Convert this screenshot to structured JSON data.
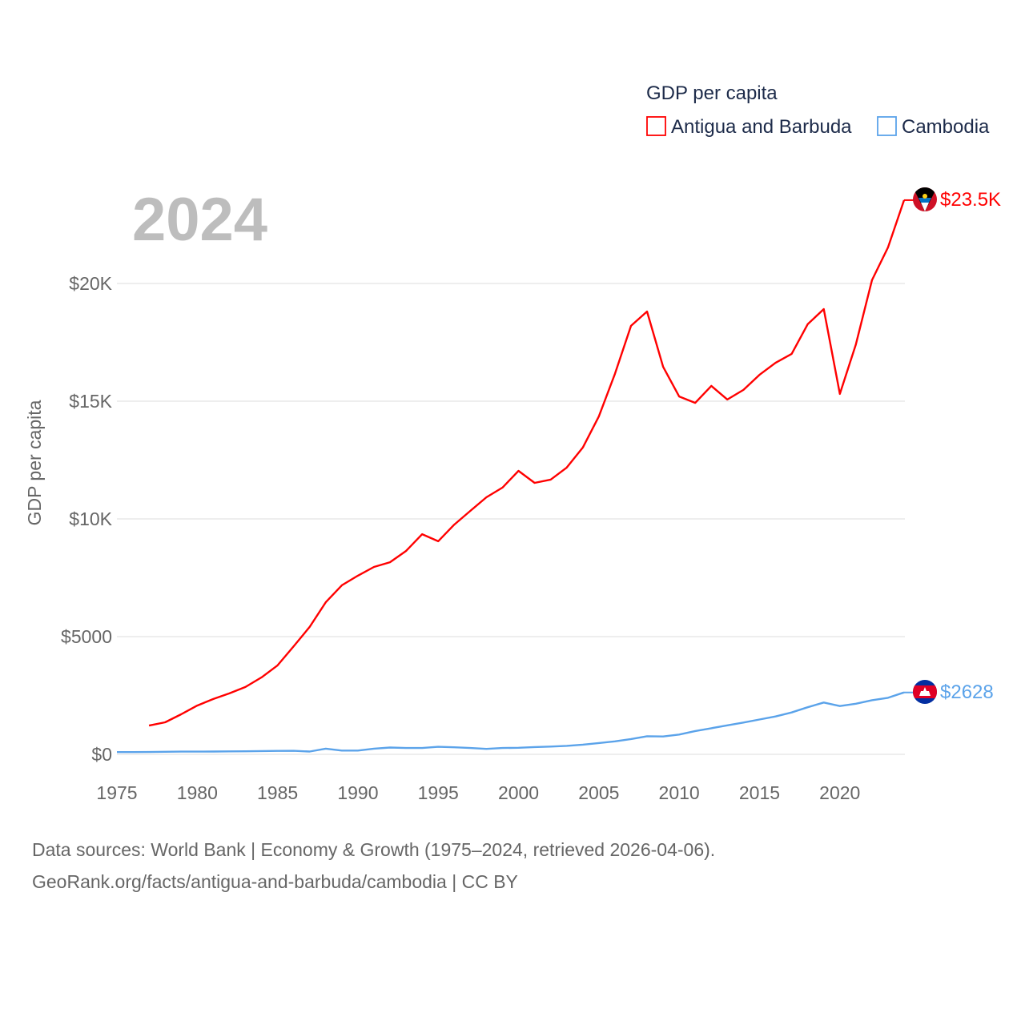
{
  "chart_data": {
    "type": "line",
    "title": "GDP per capita",
    "year_label": "2024",
    "ylabel": "GDP per capita",
    "xlabel": "",
    "xlim": [
      1975,
      2024
    ],
    "ylim": [
      0,
      24000
    ],
    "grid": true,
    "legend_placement": "top-right",
    "x_ticks": [
      1975,
      1980,
      1985,
      1990,
      1995,
      2000,
      2005,
      2010,
      2015,
      2020
    ],
    "x_tick_labels": [
      "1975",
      "1980",
      "1985",
      "1990",
      "1995",
      "2000",
      "2005",
      "2010",
      "2015",
      "2020"
    ],
    "y_ticks": [
      0,
      5000,
      10000,
      15000,
      20000
    ],
    "y_tick_labels": [
      "$0",
      "$5000",
      "$10K",
      "$15K",
      "$20K"
    ],
    "series": [
      {
        "name": "Antigua and Barbuda",
        "color": "#ff0000",
        "end_label": "$23.5K",
        "flag": "antigua-and-barbuda-flag",
        "x": [
          1977,
          1978,
          1979,
          1980,
          1981,
          1982,
          1983,
          1984,
          1985,
          1986,
          1987,
          1988,
          1989,
          1990,
          1991,
          1992,
          1993,
          1994,
          1995,
          1996,
          1997,
          1998,
          1999,
          2000,
          2001,
          2002,
          2003,
          2004,
          2005,
          2006,
          2007,
          2008,
          2009,
          2010,
          2011,
          2012,
          2013,
          2014,
          2015,
          2016,
          2017,
          2018,
          2019,
          2020,
          2021,
          2022,
          2023,
          2024
        ],
        "values": [
          1220,
          1360,
          1700,
          2070,
          2350,
          2590,
          2860,
          3270,
          3780,
          4590,
          5410,
          6460,
          7180,
          7590,
          7960,
          8160,
          8640,
          9350,
          9050,
          9760,
          10340,
          10920,
          11330,
          12040,
          11530,
          11670,
          12180,
          13030,
          14350,
          16160,
          18200,
          18810,
          16460,
          15200,
          14930,
          15650,
          15070,
          15480,
          16120,
          16630,
          17010,
          18270,
          18910,
          15310,
          17410,
          20140,
          21530,
          23540
        ]
      },
      {
        "name": "Cambodia",
        "color": "#5ba3ea",
        "end_label": "$2628",
        "flag": "cambodia-flag",
        "x": [
          1975,
          1976,
          1977,
          1978,
          1979,
          1980,
          1981,
          1982,
          1983,
          1984,
          1985,
          1986,
          1987,
          1988,
          1989,
          1990,
          1991,
          1992,
          1993,
          1994,
          1995,
          1996,
          1997,
          1998,
          1999,
          2000,
          2001,
          2002,
          2003,
          2004,
          2005,
          2006,
          2007,
          2008,
          2009,
          2010,
          2011,
          2012,
          2013,
          2014,
          2015,
          2016,
          2017,
          2018,
          2019,
          2020,
          2021,
          2022,
          2023,
          2024
        ],
        "values": [
          95,
          95,
          100,
          110,
          115,
          115,
          120,
          125,
          130,
          140,
          145,
          150,
          120,
          240,
          160,
          160,
          240,
          290,
          270,
          270,
          320,
          300,
          270,
          230,
          270,
          280,
          310,
          330,
          360,
          410,
          480,
          550,
          650,
          770,
          760,
          840,
          990,
          1110,
          1230,
          1350,
          1480,
          1610,
          1780,
          2000,
          2200,
          2050,
          2150,
          2300,
          2400,
          2628
        ]
      }
    ]
  },
  "footer": {
    "line1": "Data sources: World Bank | Economy & Growth (1975–2024, retrieved 2026-04-06).",
    "line2": "GeoRank.org/facts/antigua-and-barbuda/cambodia | CC BY"
  }
}
